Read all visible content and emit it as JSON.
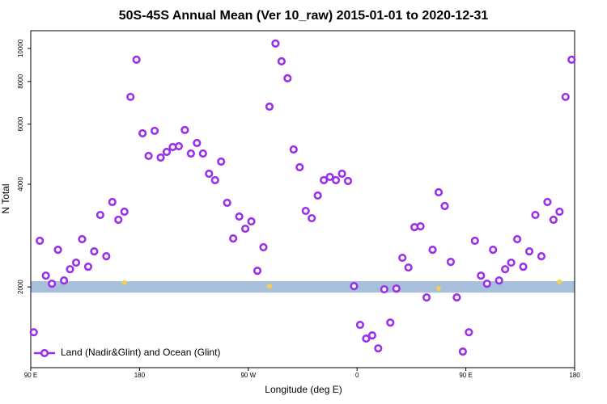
{
  "chart_data": {
    "type": "scatter",
    "title": "50S-45S Annual Mean (Ver 10_raw)   2015-01-01 to 2020-12-31",
    "x_label": "Longitude (deg E)",
    "y_label": "N Total",
    "ylog": true,
    "xlim": [
      90,
      540
    ],
    "ylim": [
      1160,
      11270
    ],
    "xticks": [
      {
        "value": 90,
        "label": "90 E"
      },
      {
        "value": 180,
        "label": "180"
      },
      {
        "value": 270,
        "label": "90 W"
      },
      {
        "value": 360,
        "label": "0"
      },
      {
        "value": 450,
        "label": "90 E"
      },
      {
        "value": 540,
        "label": "180"
      }
    ],
    "yticks": [
      2000,
      4000,
      6000,
      8000,
      10000
    ],
    "legend": "lower left",
    "band": {
      "range": [
        1924,
        2079
      ],
      "color": "#a7bfdb"
    },
    "series": [
      {
        "name": "Land (Nadir&Glint) and Ocean (Glint)",
        "color": "#9b30e8",
        "x": [
          92.5,
          97.5,
          102.5,
          107.5,
          112.5,
          117.5,
          122.5,
          127.5,
          132.5,
          137.5,
          142.5,
          147.5,
          152.5,
          157.5,
          162.5,
          167.5,
          172.5,
          177.5,
          182.5,
          187.5,
          192.5,
          197.5,
          202.5,
          207.5,
          212.5,
          217.5,
          222.5,
          227.5,
          232.5,
          237.5,
          242.5,
          247.5,
          252.5,
          257.5,
          262.5,
          267.5,
          272.5,
          277.5,
          282.5,
          287.5,
          292.5,
          297.5,
          302.5,
          307.5,
          312.5,
          317.5,
          322.5,
          327.5,
          332.5,
          337.5,
          342.5,
          347.5,
          352.5,
          357.5,
          362.5,
          367.5,
          372.5,
          377.5,
          382.5,
          387.5,
          392.5,
          397.5,
          402.5,
          407.5,
          412.5,
          417.5,
          422.5,
          427.5,
          432.5,
          437.5,
          442.5,
          447.5,
          452.5,
          457.5,
          462.5,
          467.5,
          472.5,
          477.5,
          482.5,
          487.5,
          492.5,
          497.5,
          502.5,
          507.5,
          512.5,
          517.5,
          522.5,
          527.5,
          532.5,
          537.5
        ],
        "values": [
          1473,
          2730,
          2158,
          2044,
          2570,
          2089,
          2254,
          2356,
          2760,
          2292,
          2542,
          3250,
          2460,
          3548,
          3146,
          3322,
          7210,
          9268,
          5638,
          4842,
          5734,
          4788,
          4974,
          5140,
          5168,
          5766,
          4920,
          5282,
          4920,
          4294,
          4110,
          4660,
          3528,
          2774,
          3216,
          2962,
          3112,
          2230,
          2614,
          6752,
          10336,
          9166,
          8176,
          5056,
          4484,
          3340,
          3180,
          3706,
          4110,
          4202,
          4110,
          4294,
          4088,
          2011,
          1548,
          1411,
          1442,
          1321,
          1968,
          1572,
          1978,
          2434,
          2280,
          2994,
          3010,
          1863,
          2570,
          3788,
          3452,
          2368,
          1863,
          1293,
          1473,
          2730,
          2158,
          2044,
          2570,
          2089,
          2254,
          2356,
          2760,
          2292,
          2542,
          3250,
          2460,
          3548,
          3146,
          3322,
          7210,
          9268
        ]
      }
    ],
    "highlights": {
      "color": "#f7cf4a",
      "x": [
        167.5,
        287.5,
        427.5,
        527.5
      ],
      "values": [
        2060,
        2010,
        1980,
        2070
      ]
    }
  }
}
